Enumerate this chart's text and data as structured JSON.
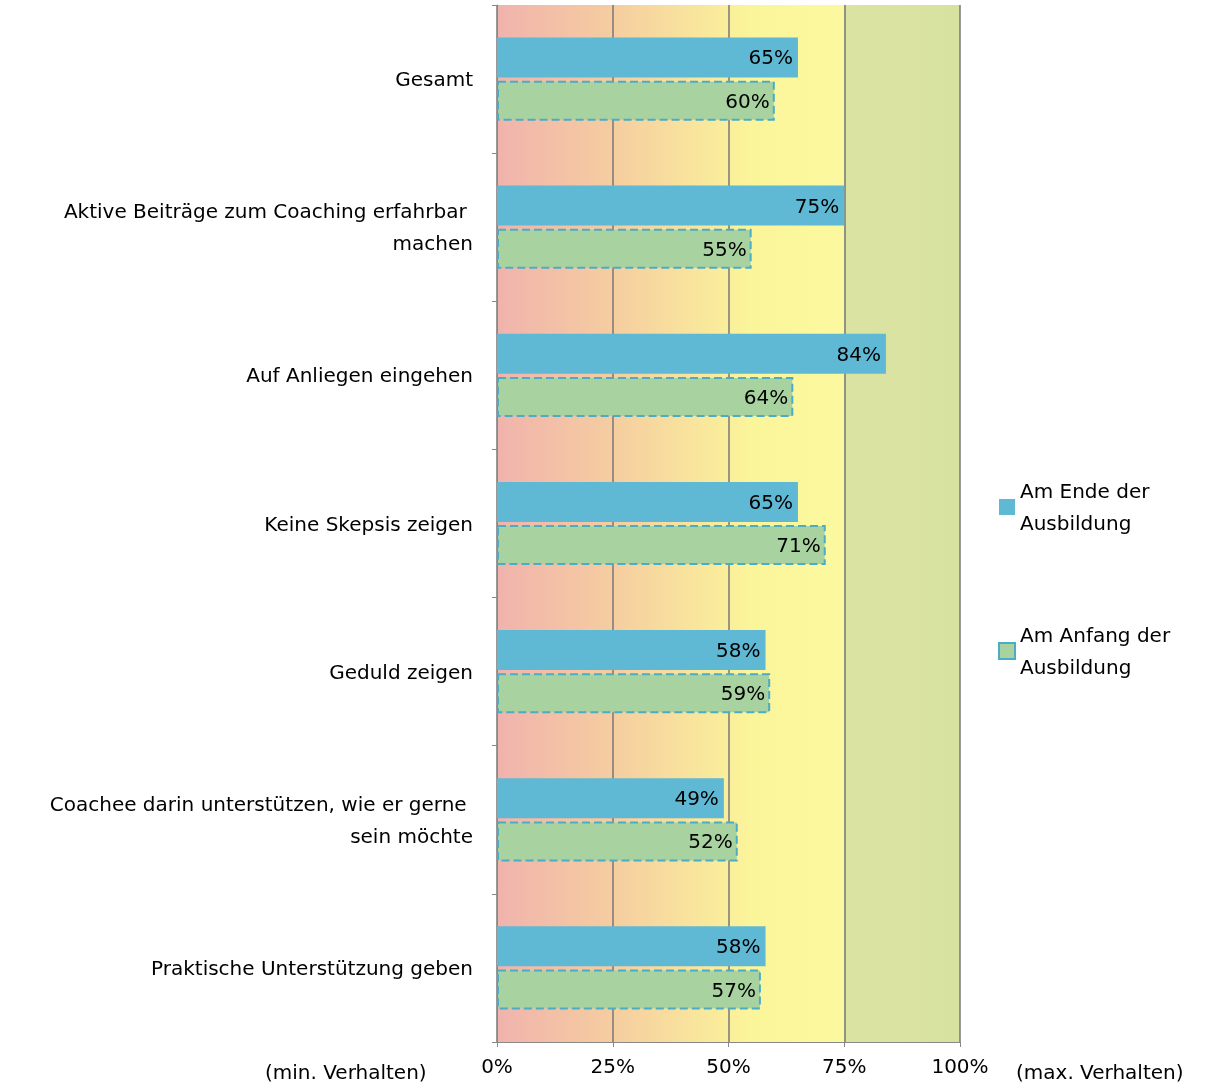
{
  "chart_data": {
    "type": "bar",
    "orientation": "horizontal",
    "categories": [
      "Gesamt",
      "Aktive Beiträge zum Coaching erfahrbar machen",
      "Auf Anliegen eingehen",
      "Keine Skepsis zeigen",
      "Geduld zeigen",
      "Coachee darin unterstützen, wie er gerne sein möchte",
      "Praktische Unterstützung geben"
    ],
    "series": [
      {
        "name": "Am Ende der Ausbildung",
        "color": "#5fb8d4",
        "values": [
          65,
          75,
          84,
          65,
          58,
          49,
          58
        ],
        "value_labels": [
          "65%",
          "75%",
          "84%",
          "65%",
          "58%",
          "49%",
          "58%"
        ]
      },
      {
        "name": "Am Anfang der Ausbildung",
        "color": "#a8d3a0",
        "values": [
          60,
          55,
          64,
          71,
          59,
          52,
          57
        ],
        "value_labels": [
          "60%",
          "55%",
          "64%",
          "71%",
          "59%",
          "52%",
          "57%"
        ]
      }
    ],
    "xlim": [
      0,
      100
    ],
    "xticks": [
      {
        "value": 0,
        "label": "0%"
      },
      {
        "value": 25,
        "label": "25%"
      },
      {
        "value": 50,
        "label": "50%"
      },
      {
        "value": 75,
        "label": "75%"
      },
      {
        "value": 100,
        "label": "100%"
      }
    ],
    "grid": "x",
    "legend": "right",
    "annotations": [
      "(min. Verhalten)",
      "(max. Verhalten)"
    ]
  }
}
